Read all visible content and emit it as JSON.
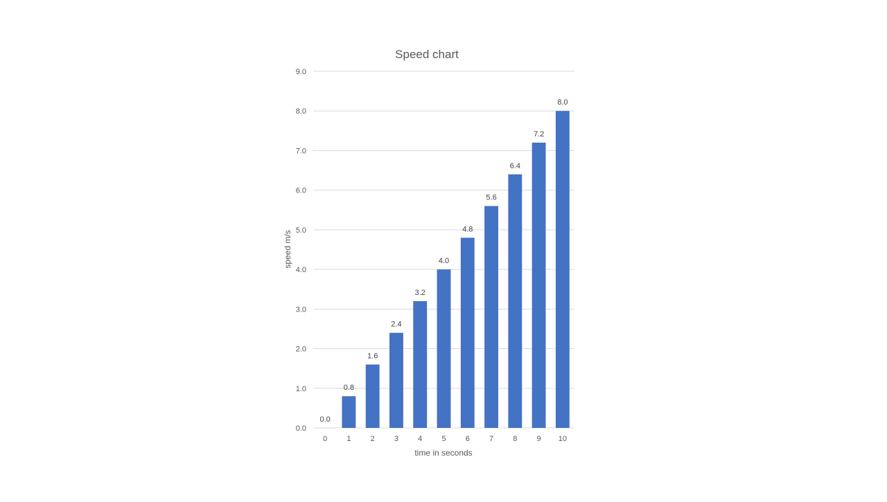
{
  "chart_data": {
    "type": "bar",
    "title": "Speed chart",
    "xlabel": "time  in seconds",
    "ylabel": "speed m/s",
    "categories": [
      "0",
      "1",
      "2",
      "3",
      "4",
      "5",
      "6",
      "7",
      "8",
      "9",
      "10"
    ],
    "series": [
      {
        "values": [
          0.0,
          0.8,
          1.6,
          2.4,
          3.2,
          4.0,
          4.8,
          5.6,
          6.4,
          7.2,
          8.0
        ],
        "data_labels": [
          "0.0",
          "0.8",
          "1.6",
          "2.4",
          "3.2",
          "4.0",
          "4.8",
          "5.6",
          "6.4",
          "7.2",
          "8.0"
        ],
        "color": "#4472c4"
      }
    ],
    "ylim": [
      0,
      9
    ],
    "yticks": [
      0,
      1,
      2,
      3,
      4,
      5,
      6,
      7,
      8,
      9
    ],
    "ytick_labels": [
      "0.0",
      "1.0",
      "2.0",
      "3.0",
      "4.0",
      "5.0",
      "6.0",
      "7.0",
      "8.0",
      "9.0"
    ],
    "grid": true,
    "legend": "none",
    "colors": {
      "bar": "#4472c4",
      "grid": "#d9d9d9",
      "text": "#595959"
    }
  }
}
